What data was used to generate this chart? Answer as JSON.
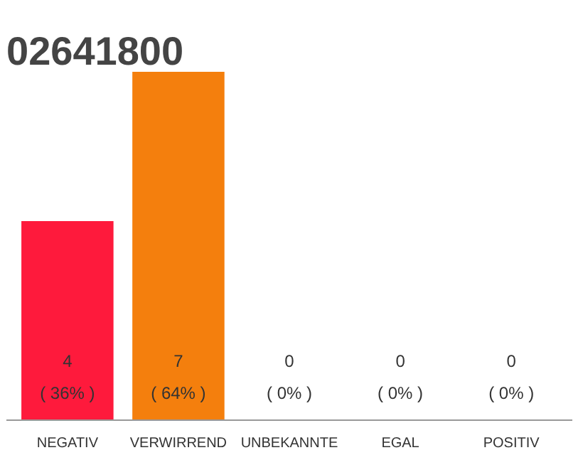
{
  "chart_data": {
    "type": "bar",
    "title": "02641800",
    "categories": [
      "NEGATIV",
      "VERWIRREND",
      "UNBEKANNTE",
      "EGAL",
      "POSITIV"
    ],
    "values": [
      4,
      7,
      0,
      0,
      0
    ],
    "colors": [
      "#fe1a3c",
      "#f47f0d",
      "#eeeeee",
      "#eeeeee",
      "#eeeeee"
    ],
    "value_labels": [
      "4\n( 36% )",
      "7\n( 64% )",
      "0\n( 0% )",
      "0\n( 0% )",
      "0\n( 0% )"
    ]
  }
}
